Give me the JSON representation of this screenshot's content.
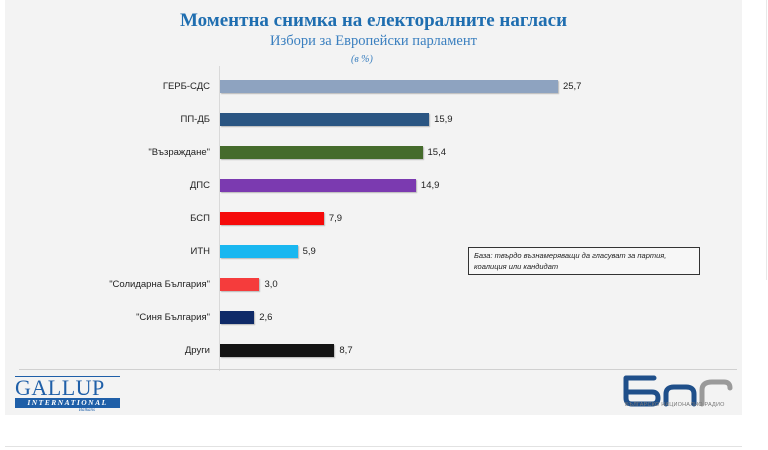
{
  "chart_data": {
    "type": "bar",
    "orientation": "horizontal",
    "title": "Моментна снимка на електоралните нагласи",
    "subtitle": "Избори за Европейски парламент",
    "unit_label": "(в %)",
    "xlabel": "",
    "ylabel": "",
    "xlim": [
      0,
      30
    ],
    "grid": false,
    "legend": null,
    "categories": [
      "ГЕРБ-СДС",
      "ПП-ДБ",
      "\"Възраждане\"",
      "ДПС",
      "БСП",
      "ИТН",
      "\"Солидарна България\"",
      "\"Синя България\"",
      "Други"
    ],
    "values": [
      25.7,
      15.9,
      15.4,
      14.9,
      7.9,
      5.9,
      3.0,
      2.6,
      8.7
    ],
    "value_labels": [
      "25,7",
      "15,9",
      "15,4",
      "14,9",
      "7,9",
      "5,9",
      "3,0",
      "2,6",
      "8,7"
    ],
    "colors": [
      "#8ea3c0",
      "#2a5582",
      "#456b2c",
      "#7b3ab0",
      "#f50a0a",
      "#19b7f0",
      "#f53c3c",
      "#0f2a68",
      "#141414"
    ],
    "annotation": "База: твърдо възнамеряващи да гласуват за партия, коалиция или кандидат"
  },
  "logos": {
    "left_main": "GALLUP",
    "left_band": "INTERNATIONAL",
    "left_sub": "Balkans",
    "right_main": "БНР",
    "right_sub": "БЪЛГАРСКО НАЦИОНАЛНО РАДИО"
  },
  "colors": {
    "title": "#1f6eb0",
    "panel_bg": "#f3f3f3",
    "gallup_blue": "#1f5fa8",
    "bnr_blue": "#1f4f8a"
  }
}
